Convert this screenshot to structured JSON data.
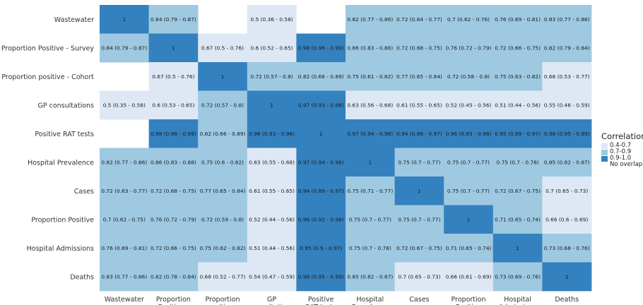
{
  "chart_data": {
    "type": "heatmap",
    "title": "",
    "xlabel": "",
    "ylabel": "",
    "x_tick_labels": [
      "Wastewater",
      "Proportion Positive - Survey",
      "Proportion positive - Cohort",
      "GP consultations",
      "Positive RAT tests",
      "Hospital Prevalence",
      "Cases",
      "Proportion Positive",
      "Hospital Admissions",
      "Deaths"
    ],
    "y_tick_labels": [
      "Wastewater",
      "Proportion Positive - Survey",
      "Proportion positive - Cohort",
      "GP consultations",
      "Positive RAT tests",
      "Hospital Prevalence",
      "Cases",
      "Proportion Positive",
      "Hospital Admissions",
      "Deaths"
    ],
    "colors": {
      "band_04_07": "#dde8f4",
      "band_07_09": "#9ec9e1",
      "band_09_10": "#3481bf",
      "no_overlap": "#ffffff"
    },
    "legend": {
      "title": "Correlation",
      "placement": "right",
      "entries": [
        {
          "label": "0.4-0.7",
          "band": "band_04_07"
        },
        {
          "label": "0.7-0.9",
          "band": "band_07_09"
        },
        {
          "label": "0.9-1.0",
          "band": "band_09_10"
        },
        {
          "label": "No overlap",
          "band": "no_overlap"
        }
      ]
    },
    "cells": [
      [
        {
          "text": "1",
          "band": "band_09_10",
          "value": 1
        },
        {
          "text": "0.84 (0.79 - 0.87)",
          "band": "band_07_09",
          "value": 0.84
        },
        null,
        {
          "text": "0.5 (0.36 - 0.58)",
          "band": "band_04_07",
          "value": 0.5
        },
        null,
        {
          "text": "0.82 (0.77 - 0.86)",
          "band": "band_07_09",
          "value": 0.82
        },
        {
          "text": "0.72 (0.64 - 0.77)",
          "band": "band_07_09",
          "value": 0.72
        },
        {
          "text": "0.7 (0.62 - 0.76)",
          "band": "band_07_09",
          "value": 0.7
        },
        {
          "text": "0.76 (0.69 - 0.81)",
          "band": "band_07_09",
          "value": 0.76
        },
        {
          "text": "0.83 (0.77 - 0.86)",
          "band": "band_07_09",
          "value": 0.83
        }
      ],
      [
        {
          "text": "0.84 (0.79 - 0.87)",
          "band": "band_07_09",
          "value": 0.84
        },
        {
          "text": "1",
          "band": "band_09_10",
          "value": 1
        },
        {
          "text": "0.67 (0.5 - 0.76)",
          "band": "band_04_07",
          "value": 0.67
        },
        {
          "text": "0.6 (0.52 - 0.65)",
          "band": "band_04_07",
          "value": 0.6
        },
        {
          "text": "0.98 (0.96 - 0.99)",
          "band": "band_09_10",
          "value": 0.98
        },
        {
          "text": "0.86 (0.83 - 0.88)",
          "band": "band_07_09",
          "value": 0.86
        },
        {
          "text": "0.72 (0.68 - 0.75)",
          "band": "band_07_09",
          "value": 0.72
        },
        {
          "text": "0.76 (0.72 - 0.79)",
          "band": "band_07_09",
          "value": 0.76
        },
        {
          "text": "0.72 (0.66 - 0.75)",
          "band": "band_07_09",
          "value": 0.72
        },
        {
          "text": "0.82 (0.79 - 0.84)",
          "band": "band_07_09",
          "value": 0.82
        }
      ],
      [
        null,
        {
          "text": "0.67 (0.5 - 0.76)",
          "band": "band_04_07",
          "value": 0.67
        },
        {
          "text": "1",
          "band": "band_09_10",
          "value": 1
        },
        {
          "text": "0.72 (0.57 - 0.8)",
          "band": "band_07_09",
          "value": 0.72
        },
        {
          "text": "0.82 (0.66 - 0.89)",
          "band": "band_07_09",
          "value": 0.82
        },
        {
          "text": "0.75 (0.61 - 0.82)",
          "band": "band_07_09",
          "value": 0.75
        },
        {
          "text": "0.77 (0.65 - 0.84)",
          "band": "band_07_09",
          "value": 0.77
        },
        {
          "text": "0.72 (0.58 - 0.8)",
          "band": "band_07_09",
          "value": 0.72
        },
        {
          "text": "0.75 (0.63 - 0.82)",
          "band": "band_07_09",
          "value": 0.75
        },
        {
          "text": "0.68 (0.53 - 0.77)",
          "band": "band_04_07",
          "value": 0.68
        }
      ],
      [
        {
          "text": "0.5 (0.35 - 0.58)",
          "band": "band_04_07",
          "value": 0.5
        },
        {
          "text": "0.6 (0.53 - 0.65)",
          "band": "band_04_07",
          "value": 0.6
        },
        {
          "text": "0.72 (0.57 - 0.8)",
          "band": "band_07_09",
          "value": 0.72
        },
        {
          "text": "1",
          "band": "band_09_10",
          "value": 1
        },
        {
          "text": "0.97 (0.93 - 0.98)",
          "band": "band_09_10",
          "value": 0.97
        },
        {
          "text": "0.63 (0.56 - 0.68)",
          "band": "band_04_07",
          "value": 0.63
        },
        {
          "text": "0.61 (0.55 - 0.65)",
          "band": "band_04_07",
          "value": 0.61
        },
        {
          "text": "0.52 (0.45 - 0.56)",
          "band": "band_04_07",
          "value": 0.52
        },
        {
          "text": "0.51 (0.44 - 0.56)",
          "band": "band_04_07",
          "value": 0.51
        },
        {
          "text": "0.55 (0.48 - 0.59)",
          "band": "band_04_07",
          "value": 0.55
        }
      ],
      [
        null,
        {
          "text": "0.98 (0.96 - 0.99)",
          "band": "band_09_10",
          "value": 0.98
        },
        {
          "text": "0.82 (0.66 - 0.89)",
          "band": "band_07_09",
          "value": 0.82
        },
        {
          "text": "0.96 (0.93 - 0.98)",
          "band": "band_09_10",
          "value": 0.96
        },
        {
          "text": "1",
          "band": "band_09_10",
          "value": 1
        },
        {
          "text": "0.97 (0.94 - 0.98)",
          "band": "band_09_10",
          "value": 0.97
        },
        {
          "text": "0.94 (0.89 - 0.97)",
          "band": "band_09_10",
          "value": 0.94
        },
        {
          "text": "0.96 (0.93 - 0.98)",
          "band": "band_09_10",
          "value": 0.96
        },
        {
          "text": "0.95 (0.89 - 0.97)",
          "band": "band_09_10",
          "value": 0.95
        },
        {
          "text": "0.98 (0.95 - 0.99)",
          "band": "band_09_10",
          "value": 0.98
        }
      ],
      [
        {
          "text": "0.82 (0.77 - 0.86)",
          "band": "band_07_09",
          "value": 0.82
        },
        {
          "text": "0.86 (0.83 - 0.88)",
          "band": "band_07_09",
          "value": 0.86
        },
        {
          "text": "0.75 (0.6 - 0.82)",
          "band": "band_07_09",
          "value": 0.75
        },
        {
          "text": "0.63 (0.55 - 0.68)",
          "band": "band_04_07",
          "value": 0.63
        },
        {
          "text": "0.97 (0.94 - 0.98)",
          "band": "band_09_10",
          "value": 0.97
        },
        {
          "text": "1",
          "band": "band_09_10",
          "value": 1
        },
        {
          "text": "0.75 (0.7 - 0.77)",
          "band": "band_07_09",
          "value": 0.75
        },
        {
          "text": "0.75 (0.7 - 0.77)",
          "band": "band_07_09",
          "value": 0.75
        },
        {
          "text": "0.75 (0.7 - 0.78)",
          "band": "band_07_09",
          "value": 0.75
        },
        {
          "text": "0.85 (0.82 - 0.87)",
          "band": "band_07_09",
          "value": 0.85
        }
      ],
      [
        {
          "text": "0.72 (0.63 - 0.77)",
          "band": "band_07_09",
          "value": 0.72
        },
        {
          "text": "0.72 (0.68 - 0.75)",
          "band": "band_07_09",
          "value": 0.72
        },
        {
          "text": "0.77 (0.65 - 0.84)",
          "band": "band_07_09",
          "value": 0.77
        },
        {
          "text": "0.61 (0.55 - 0.65)",
          "band": "band_04_07",
          "value": 0.61
        },
        {
          "text": "0.94 (0.89 - 0.97)",
          "band": "band_09_10",
          "value": 0.94
        },
        {
          "text": "0.75 (0.71 - 0.77)",
          "band": "band_07_09",
          "value": 0.75
        },
        {
          "text": "1",
          "band": "band_09_10",
          "value": 1
        },
        {
          "text": "0.75 (0.7 - 0.77)",
          "band": "band_07_09",
          "value": 0.75
        },
        {
          "text": "0.72 (0.67 - 0.75)",
          "band": "band_07_09",
          "value": 0.72
        },
        {
          "text": "0.7 (0.65 - 0.73)",
          "band": "band_04_07",
          "value": 0.7
        }
      ],
      [
        {
          "text": "0.7 (0.62 - 0.75)",
          "band": "band_07_09",
          "value": 0.7
        },
        {
          "text": "0.76 (0.72 - 0.79)",
          "band": "band_07_09",
          "value": 0.76
        },
        {
          "text": "0.72 (0.59 - 0.8)",
          "band": "band_07_09",
          "value": 0.72
        },
        {
          "text": "0.52 (0.44 - 0.56)",
          "band": "band_04_07",
          "value": 0.52
        },
        {
          "text": "0.96 (0.92 - 0.98)",
          "band": "band_09_10",
          "value": 0.96
        },
        {
          "text": "0.75 (0.7 - 0.77)",
          "band": "band_07_09",
          "value": 0.75
        },
        {
          "text": "0.75 (0.7 - 0.77)",
          "band": "band_07_09",
          "value": 0.75
        },
        {
          "text": "1",
          "band": "band_09_10",
          "value": 1
        },
        {
          "text": "0.71 (0.65 - 0.74)",
          "band": "band_07_09",
          "value": 0.71
        },
        {
          "text": "0.66 (0.6 - 0.69)",
          "band": "band_04_07",
          "value": 0.66
        }
      ],
      [
        {
          "text": "0.76 (0.69 - 0.81)",
          "band": "band_07_09",
          "value": 0.76
        },
        {
          "text": "0.72 (0.66 - 0.75)",
          "band": "band_07_09",
          "value": 0.72
        },
        {
          "text": "0.75 (0.62 - 0.82)",
          "band": "band_07_09",
          "value": 0.75
        },
        {
          "text": "0.51 (0.44 - 0.56)",
          "band": "band_04_07",
          "value": 0.51
        },
        {
          "text": "0.95 (0.9 - 0.97)",
          "band": "band_09_10",
          "value": 0.95
        },
        {
          "text": "0.75 (0.7 - 0.78)",
          "band": "band_07_09",
          "value": 0.75
        },
        {
          "text": "0.72 (0.67 - 0.75)",
          "band": "band_07_09",
          "value": 0.72
        },
        {
          "text": "0.71 (0.65 - 0.74)",
          "band": "band_07_09",
          "value": 0.71
        },
        {
          "text": "1",
          "band": "band_09_10",
          "value": 1
        },
        {
          "text": "0.73 (0.68 - 0.76)",
          "band": "band_07_09",
          "value": 0.73
        }
      ],
      [
        {
          "text": "0.83 (0.77 - 0.86)",
          "band": "band_07_09",
          "value": 0.83
        },
        {
          "text": "0.82 (0.78 - 0.84)",
          "band": "band_07_09",
          "value": 0.82
        },
        {
          "text": "0.68 (0.52 - 0.77)",
          "band": "band_04_07",
          "value": 0.68
        },
        {
          "text": "0.54 (0.47 - 0.59)",
          "band": "band_04_07",
          "value": 0.54
        },
        {
          "text": "0.98 (0.95 - 0.99)",
          "band": "band_09_10",
          "value": 0.98
        },
        {
          "text": "0.85 (0.82 - 0.87)",
          "band": "band_07_09",
          "value": 0.85
        },
        {
          "text": "0.7 (0.65 - 0.73)",
          "band": "band_04_07",
          "value": 0.7
        },
        {
          "text": "0.66 (0.61 - 0.69)",
          "band": "band_04_07",
          "value": 0.66
        },
        {
          "text": "0.73 (0.69 - 0.76)",
          "band": "band_07_09",
          "value": 0.73
        },
        {
          "text": "1",
          "band": "band_09_10",
          "value": 1
        }
      ]
    ]
  }
}
